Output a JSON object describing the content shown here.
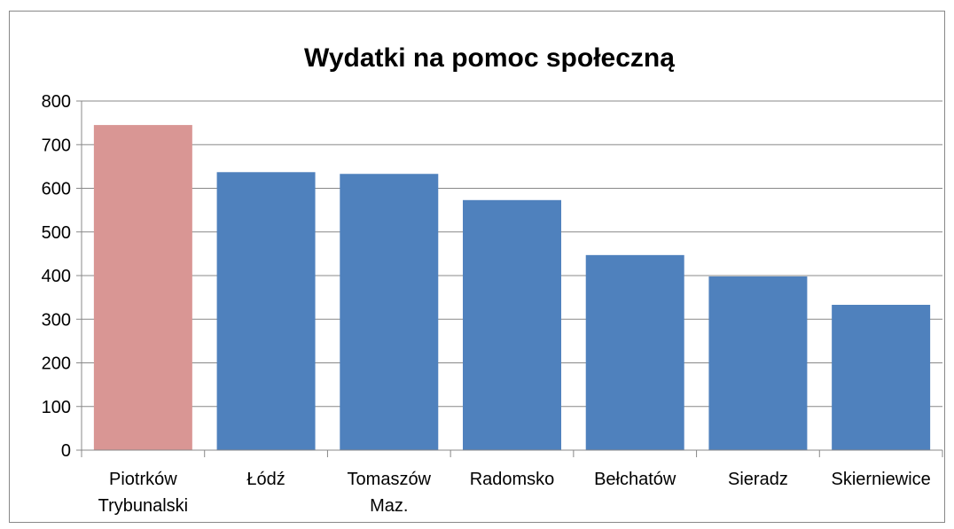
{
  "chart_data": {
    "type": "bar",
    "title": "Wydatki na pomoc społeczną",
    "categories": [
      "Piotrków Trybunalski",
      "Łódź",
      "Tomaszów Maz.",
      "Radomsko",
      "Bełchatów",
      "Sieradz",
      "Skierniewice"
    ],
    "values": [
      745,
      637,
      633,
      573,
      447,
      398,
      333
    ],
    "colors": [
      "#d99694",
      "#4f81bd",
      "#4f81bd",
      "#4f81bd",
      "#4f81bd",
      "#4f81bd",
      "#4f81bd"
    ],
    "ylim": [
      0,
      800
    ],
    "yticks": [
      0,
      100,
      200,
      300,
      400,
      500,
      600,
      700,
      800
    ],
    "grid": true
  }
}
